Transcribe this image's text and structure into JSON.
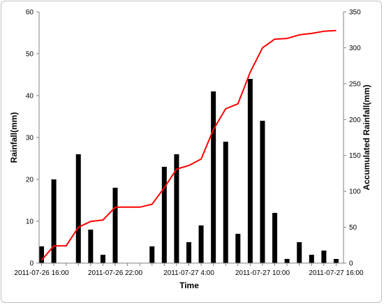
{
  "chart_data": {
    "type": "bar+line",
    "title": "",
    "xlabel": "Time",
    "ylabel": "Rainfall(mm)",
    "y2label": "Accumulated Rainfall(mm)",
    "ylim": [
      0,
      60
    ],
    "y2lim": [
      0,
      350
    ],
    "yticks": [
      0,
      10,
      20,
      30,
      40,
      50,
      60
    ],
    "y2ticks": [
      0,
      50,
      100,
      150,
      200,
      250,
      300,
      350
    ],
    "x_tick_labels": [
      {
        "index": 0,
        "label": "2011-07-26 16:00"
      },
      {
        "index": 6,
        "label": "2011-07-26 22:00"
      },
      {
        "index": 12,
        "label": "2011-07-27 4:00"
      },
      {
        "index": 18,
        "label": "2011-07-27 10:00"
      },
      {
        "index": 24,
        "label": "2011-07-27 16:00"
      }
    ],
    "grid": false,
    "legend": "none",
    "series": [
      {
        "type": "bar",
        "axis": "left",
        "color": "#000000",
        "values": [
          4,
          20,
          0,
          26,
          8,
          2,
          18,
          0,
          0,
          4,
          23,
          26,
          5,
          9,
          41,
          29,
          7,
          44,
          34,
          12,
          1,
          5,
          2,
          3,
          1
        ]
      },
      {
        "type": "line",
        "axis": "right",
        "color": "#ff0000",
        "values": [
          4,
          24,
          24,
          50,
          58,
          60,
          78,
          78,
          78,
          82,
          105,
          131,
          136,
          145,
          186,
          215,
          222,
          266,
          300,
          312,
          313,
          318,
          320,
          323,
          324
        ]
      }
    ]
  }
}
